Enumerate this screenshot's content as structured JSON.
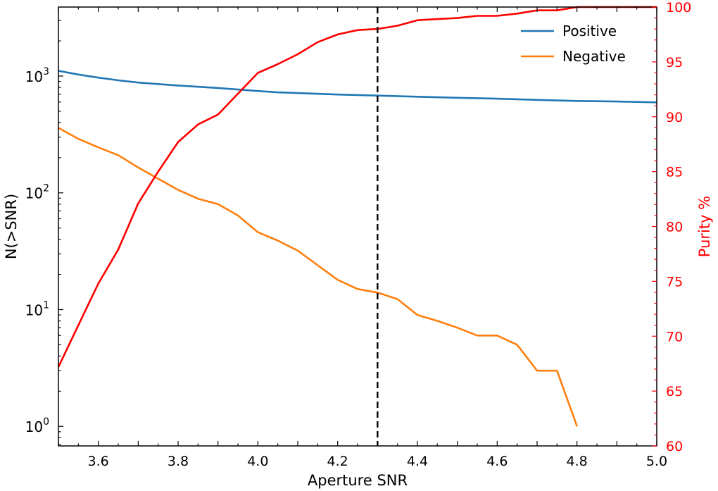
{
  "chart_data": {
    "type": "line",
    "xlabel": "Aperture SNR",
    "ylabel_left": "N(>SNR)",
    "ylabel_right": "Purity %",
    "xlim": [
      3.5,
      5.0
    ],
    "ylim_left": [
      0.68,
      3900
    ],
    "ylim_right": [
      60,
      100
    ],
    "x_ticks": [
      3.6,
      3.8,
      4.0,
      4.2,
      4.4,
      4.6,
      4.8,
      5.0
    ],
    "x_tick_labels": [
      "3.6",
      "3.8",
      "4.0",
      "4.2",
      "4.4",
      "4.6",
      "4.8",
      "5.0"
    ],
    "y_left_ticks": [
      {
        "value": 1,
        "base": "10",
        "exp": "0"
      },
      {
        "value": 10,
        "base": "10",
        "exp": "1"
      },
      {
        "value": 100,
        "base": "10",
        "exp": "2"
      },
      {
        "value": 1000,
        "base": "10",
        "exp": "3"
      }
    ],
    "y_right_ticks": [
      60,
      65,
      70,
      75,
      80,
      85,
      90,
      95,
      100
    ],
    "y_right_tick_labels": [
      "60",
      "65",
      "70",
      "75",
      "80",
      "85",
      "90",
      "95",
      "100"
    ],
    "vline": {
      "x": 4.3,
      "style": "dashed"
    },
    "legend": {
      "position": "top-right"
    },
    "series": [
      {
        "name": "Positive",
        "axis": "left",
        "color": "#1f77b4",
        "x": [
          3.5,
          3.55,
          3.6,
          3.65,
          3.7,
          3.8,
          3.9,
          4.0,
          4.05,
          4.1,
          4.2,
          4.3,
          4.4,
          4.5,
          4.6,
          4.7,
          4.8,
          4.9,
          5.0
        ],
        "y": [
          1110,
          1030,
          970,
          920,
          880,
          830,
          790,
          745,
          725,
          715,
          695,
          680,
          665,
          652,
          640,
          625,
          612,
          605,
          595
        ]
      },
      {
        "name": "Negative",
        "axis": "left",
        "color": "#ff7f0e",
        "x": [
          3.5,
          3.55,
          3.6,
          3.65,
          3.7,
          3.75,
          3.8,
          3.85,
          3.9,
          3.95,
          4.0,
          4.05,
          4.1,
          4.15,
          4.2,
          4.25,
          4.3,
          4.35,
          4.4,
          4.45,
          4.5,
          4.55,
          4.6,
          4.65,
          4.7,
          4.75,
          4.8
        ],
        "y": [
          360,
          290,
          245,
          210,
          165,
          132,
          106,
          89,
          80,
          64,
          46,
          39,
          32,
          24,
          18,
          15,
          14,
          12.3,
          9,
          8,
          7,
          6,
          6,
          5,
          3,
          3,
          1
        ]
      },
      {
        "name": "Purity",
        "axis": "right",
        "color": "#ff0000",
        "x": [
          3.5,
          3.55,
          3.6,
          3.65,
          3.7,
          3.75,
          3.8,
          3.85,
          3.9,
          3.95,
          4.0,
          4.05,
          4.1,
          4.15,
          4.2,
          4.25,
          4.3,
          4.35,
          4.4,
          4.45,
          4.5,
          4.55,
          4.6,
          4.65,
          4.7,
          4.75,
          4.8,
          4.85,
          5.0
        ],
        "y": [
          67.2,
          71,
          74.8,
          77.9,
          82.1,
          85.0,
          87.7,
          89.3,
          90.2,
          92.1,
          94.0,
          94.8,
          95.7,
          96.8,
          97.5,
          97.9,
          98.0,
          98.3,
          98.8,
          98.9,
          99.0,
          99.2,
          99.2,
          99.4,
          99.7,
          99.7,
          100.0,
          100.0,
          100.0
        ]
      }
    ]
  }
}
